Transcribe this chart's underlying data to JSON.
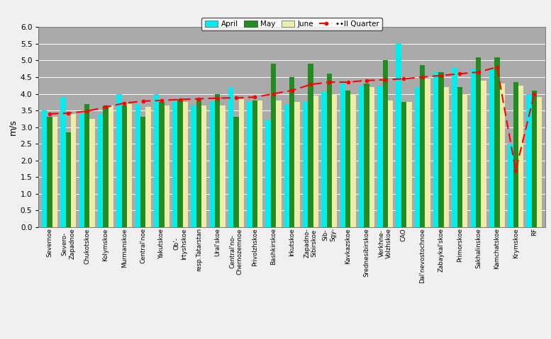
{
  "categories": [
    "Severnoe",
    "Severo-\nZapadnoe",
    "Chukotskoe",
    "Kolymskoe",
    "Murmanskoe",
    "Central'noe",
    "Yakutskoe",
    "Ob'-\nIrtyshskoe",
    "resp.Tatarstan",
    "Ural'skoe",
    "Central'no-\nChernozemnoe",
    "Privolzhskoe",
    "Bashkirskoe",
    "Irkutskoe",
    "Zapadno-\nSibirskoe",
    "Sib-\nSgy-",
    "Kavkazskoe",
    "Srednesibirskoe",
    "Verkhne-\nVolzhskoe",
    "CAO",
    "Dal'nevostochnoe",
    "Zabaykal'skoe",
    "Primorskoe",
    "Sakhalinskoe",
    "Kamchatskoe",
    "Krymskoe",
    "RF"
  ],
  "april": [
    3.5,
    3.9,
    3.4,
    3.4,
    4.0,
    3.7,
    4.0,
    3.75,
    3.65,
    3.75,
    4.2,
    3.75,
    3.2,
    3.7,
    3.75,
    4.05,
    4.3,
    4.25,
    4.25,
    5.5,
    4.2,
    4.65,
    4.8,
    4.75,
    4.75,
    2.5,
    4.0
  ],
  "may": [
    3.3,
    2.85,
    3.7,
    3.65,
    3.65,
    3.3,
    3.75,
    3.85,
    3.85,
    4.0,
    3.3,
    3.8,
    4.9,
    4.5,
    4.9,
    4.6,
    4.1,
    4.3,
    5.0,
    3.75,
    4.85,
    4.65,
    4.2,
    5.1,
    5.1,
    4.35,
    4.1
  ],
  "june": [
    3.3,
    3.4,
    3.25,
    3.65,
    3.7,
    3.6,
    3.65,
    3.75,
    3.65,
    3.65,
    3.85,
    3.8,
    3.8,
    3.75,
    3.95,
    4.0,
    4.0,
    4.2,
    3.8,
    3.75,
    4.45,
    4.2,
    4.0,
    4.4,
    4.3,
    4.25,
    3.9
  ],
  "quarter_line": [
    3.4,
    3.42,
    3.48,
    3.6,
    3.72,
    3.78,
    3.8,
    3.83,
    3.85,
    3.87,
    3.88,
    3.9,
    4.0,
    4.1,
    4.28,
    4.35,
    4.35,
    4.4,
    4.42,
    4.45,
    4.5,
    4.55,
    4.6,
    4.65,
    4.8,
    1.7,
    4.0
  ],
  "color_april": "#00EEEE",
  "color_may": "#228B22",
  "color_june": "#EEEEAA",
  "color_quarter": "#FF0000",
  "ylabel": "m/s",
  "ylim": [
    0,
    6
  ],
  "yticks": [
    0,
    0.5,
    1.0,
    1.5,
    2.0,
    2.5,
    3.0,
    3.5,
    4.0,
    4.5,
    5.0,
    5.5,
    6.0
  ],
  "legend_labels": [
    "April",
    "May",
    "June",
    "••II Quarter"
  ],
  "bg_color": "#AAAAAA",
  "bar_width": 0.28,
  "fig_width": 7.77,
  "fig_height": 4.79,
  "dpi": 100
}
